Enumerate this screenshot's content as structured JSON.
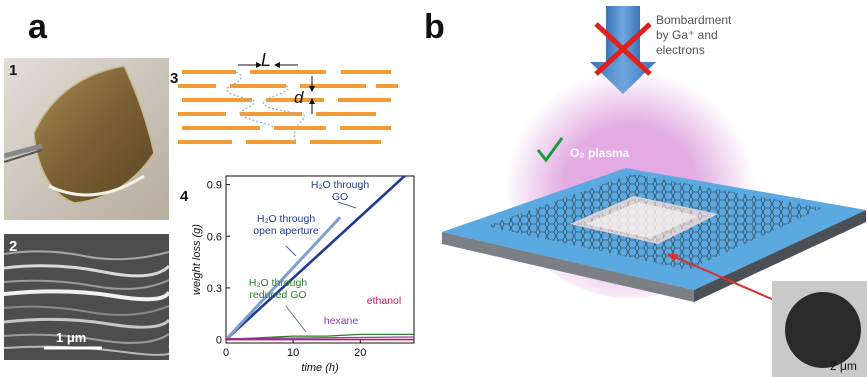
{
  "panel_a": {
    "letter": "a",
    "photo": {
      "label": "1"
    },
    "sem": {
      "label": "2",
      "scale_bar": "1 μm"
    },
    "schematic": {
      "label": "3",
      "length_symbol": "L",
      "spacing_symbol": "d"
    },
    "plot": {
      "label": "4"
    }
  },
  "panel_b": {
    "letter": "b",
    "bombardment_label": [
      "Bombardment",
      "by Ga⁺ and",
      "electrons"
    ],
    "plasma_label": "O₂ plasma",
    "inset_scale": "2 μm",
    "colors": {
      "arrow": "#4a86c8",
      "cross": "#e0201c",
      "check": "#1a9a3a",
      "plasma": "#cc66cc",
      "substrate_top": "#5aa9e0",
      "pointer": "#d8302a"
    }
  },
  "chart_data": {
    "type": "line",
    "xlabel": "time (h)",
    "ylabel": "weight loss (g)",
    "xlim": [
      0,
      28
    ],
    "ylim": [
      -0.02,
      0.95
    ],
    "xticks": [
      0,
      10,
      20
    ],
    "yticks": [
      0,
      0.3,
      0.6,
      0.9
    ],
    "series": [
      {
        "name": "H₂O through GO",
        "color": "#1f3a93",
        "x": [
          0,
          28
        ],
        "y": [
          0,
          1.0
        ]
      },
      {
        "name": "H₂O through open aperture",
        "color": "#7f9fcf",
        "x": [
          0,
          17
        ],
        "y": [
          0,
          0.71
        ]
      },
      {
        "name": "H₂O through reduced GO",
        "color": "#2e7d32",
        "x": [
          0,
          5,
          10,
          15,
          20,
          25,
          28
        ],
        "y": [
          0,
          0.01,
          0.02,
          0.02,
          0.03,
          0.03,
          0.03
        ]
      },
      {
        "name": "hexane",
        "color": "#8e3fa8",
        "x": [
          0,
          28
        ],
        "y": [
          0.005,
          0.015
        ]
      },
      {
        "name": "ethanol",
        "color": "#c2185b",
        "x": [
          0,
          28
        ],
        "y": [
          0.0,
          0.0
        ]
      }
    ],
    "annotations": [
      {
        "text": [
          "H₂O through",
          "GO"
        ],
        "color": "#1f3a93"
      },
      {
        "text": [
          "H₂O through",
          "open aperture"
        ],
        "color": "#1f3a93"
      },
      {
        "text": [
          "H₂O through",
          "reduced GO"
        ],
        "color": "#2e7d32"
      },
      {
        "text": [
          "hexane"
        ],
        "color": "#8e3fa8"
      },
      {
        "text": [
          "ethanol"
        ],
        "color": "#c2185b"
      }
    ]
  }
}
